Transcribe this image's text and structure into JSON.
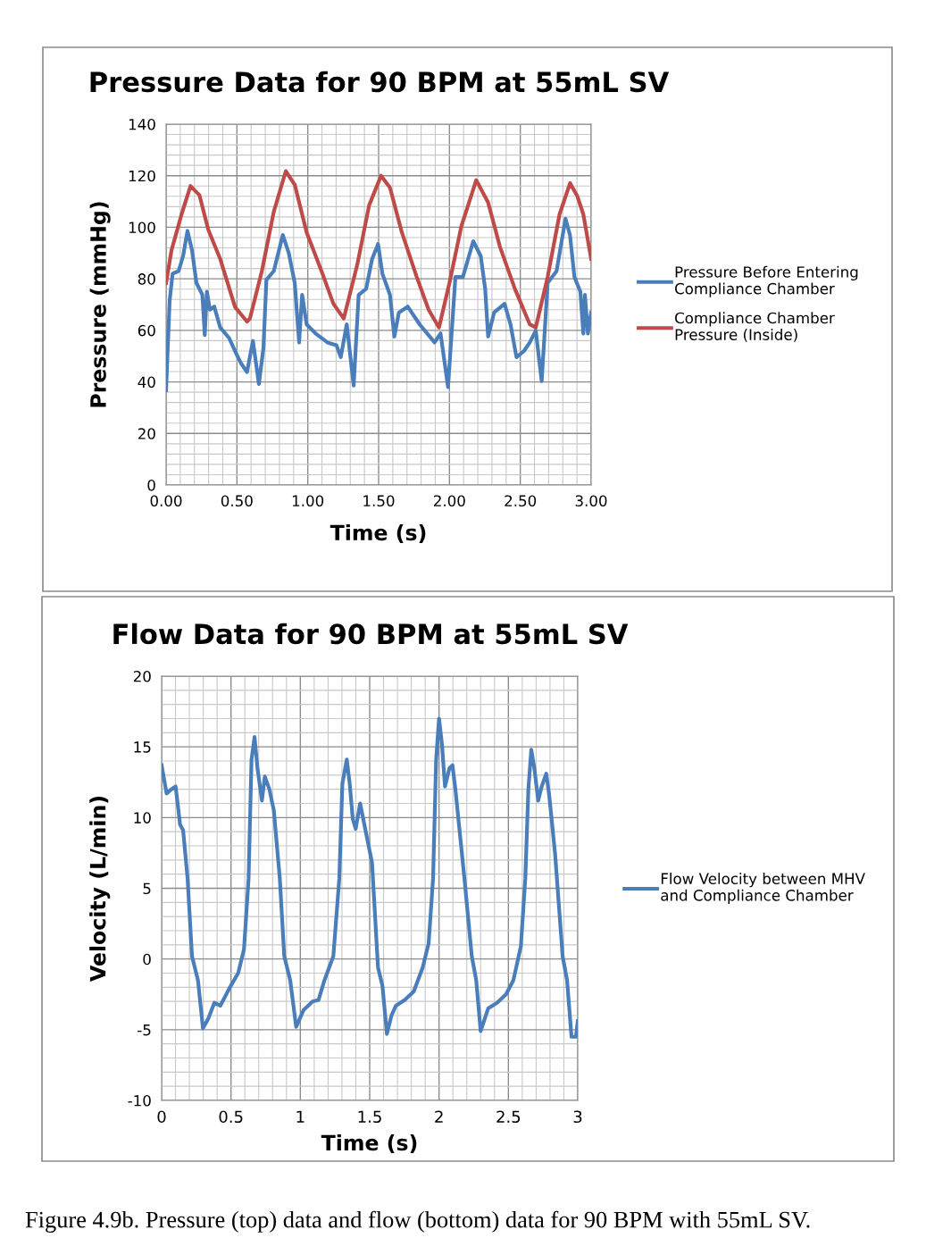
{
  "chart_data": [
    {
      "type": "line",
      "title": "Pressure Data for 90 BPM at 55mL SV",
      "xlabel": "Time (s)",
      "ylabel": "Pressure (mmHg)",
      "xlim": [
        0,
        3
      ],
      "ylim": [
        0,
        140
      ],
      "xticks": [
        {
          "value": 0,
          "label": "0.00"
        },
        {
          "value": 0.5,
          "label": "0.50"
        },
        {
          "value": 1,
          "label": "1.00"
        },
        {
          "value": 1.5,
          "label": "1.50"
        },
        {
          "value": 2,
          "label": "2.00"
        },
        {
          "value": 2.5,
          "label": "2.50"
        },
        {
          "value": 3,
          "label": "3.00"
        }
      ],
      "yticks": [
        0,
        20,
        40,
        60,
        80,
        100,
        120,
        140
      ],
      "grid": true,
      "legend": "right",
      "marker": "none",
      "line_style": "solid",
      "series": [
        {
          "name": "Pressure Before Entering\nCompliance Chamber",
          "color": "#4a7ebb",
          "x": [
            0,
            0.025,
            0.046,
            0.088,
            0.12,
            0.151,
            0.183,
            0.214,
            0.256,
            0.273,
            0.288,
            0.309,
            0.34,
            0.382,
            0.445,
            0.487,
            0.529,
            0.571,
            0.613,
            0.655,
            0.687,
            0.708,
            0.76,
            0.824,
            0.866,
            0.908,
            0.939,
            0.96,
            0.992,
            1.055,
            1.139,
            1.202,
            1.233,
            1.275,
            1.324,
            1.359,
            1.412,
            1.454,
            1.496,
            1.527,
            1.58,
            1.611,
            1.643,
            1.706,
            1.79,
            1.895,
            1.937,
            1.99,
            2.042,
            2.095,
            2.168,
            2.221,
            2.252,
            2.273,
            2.315,
            2.389,
            2.431,
            2.473,
            2.525,
            2.567,
            2.609,
            2.651,
            2.693,
            2.756,
            2.819,
            2.851,
            2.882,
            2.924,
            2.945,
            2.956,
            2.977,
            3.0
          ],
          "values": [
            36.8,
            71.5,
            82,
            83,
            88.8,
            98.6,
            91.1,
            78.4,
            73.8,
            58.2,
            75,
            68,
            69.2,
            61.1,
            57,
            51.9,
            47.2,
            43.8,
            55.9,
            39.2,
            53.1,
            79.6,
            83,
            97,
            90,
            78.4,
            55.3,
            73.8,
            62.3,
            58.8,
            55.3,
            54.2,
            49.6,
            62.3,
            38.6,
            73.8,
            76.1,
            87.7,
            93.5,
            81.9,
            73.8,
            57.6,
            66.9,
            69.2,
            62.3,
            55.3,
            58.8,
            38,
            80.7,
            80.7,
            94.6,
            88.8,
            76.1,
            57.6,
            66.9,
            70.3,
            62.3,
            49.6,
            51.9,
            55.3,
            59.9,
            40.3,
            78.4,
            83,
            103.3,
            96.9,
            80.7,
            75,
            58.8,
            73.8,
            58.8,
            66.9
          ]
        },
        {
          "name": "Compliance Chamber\nPressure (Inside)",
          "color": "#be4b48",
          "x": [
            0,
            0.038,
            0.109,
            0.172,
            0.235,
            0.298,
            0.382,
            0.487,
            0.571,
            0.592,
            0.676,
            0.76,
            0.845,
            0.908,
            0.992,
            1.097,
            1.181,
            1.254,
            1.349,
            1.433,
            1.517,
            1.58,
            1.664,
            1.769,
            1.853,
            1.926,
            2.0,
            2.084,
            2.189,
            2.273,
            2.357,
            2.462,
            2.567,
            2.609,
            2.693,
            2.777,
            2.851,
            2.903,
            2.945,
            3.0
          ],
          "values": [
            78.4,
            91,
            105,
            116,
            112.5,
            99,
            87.7,
            69,
            63.4,
            64.6,
            83,
            106,
            121.8,
            116.5,
            98,
            83,
            70.3,
            64.6,
            85.4,
            108.5,
            120,
            115.4,
            98,
            80.7,
            68,
            61.1,
            78.4,
            100.4,
            118.3,
            109.6,
            92.3,
            76.1,
            62.3,
            61.1,
            80.7,
            105,
            117.1,
            112,
            105,
            87.7
          ]
        }
      ]
    },
    {
      "type": "line",
      "title": "Flow Data for 90 BPM at 55mL SV",
      "xlabel": "Time (s)",
      "ylabel": "Velocity (L/min)",
      "xlim": [
        0,
        3
      ],
      "ylim": [
        -10,
        20
      ],
      "xticks": [
        0,
        0.5,
        1,
        1.5,
        2,
        2.5,
        3
      ],
      "yticks": [
        -10,
        -5,
        0,
        5,
        10,
        15,
        20
      ],
      "grid": true,
      "legend": "right",
      "marker": "none",
      "line_style": "solid",
      "annotations": [
        "Figure 4.9b. Pressure (top) data and flow (bottom) data for 90 BPM with 55mL SV."
      ],
      "series": [
        {
          "name": "Flow Velocity between MHV\nand Compliance Chamber",
          "color": "#4a7ebb",
          "x": [
            0,
            0.036,
            0.069,
            0.101,
            0.133,
            0.155,
            0.187,
            0.219,
            0.262,
            0.298,
            0.337,
            0.38,
            0.423,
            0.487,
            0.552,
            0.594,
            0.627,
            0.648,
            0.67,
            0.691,
            0.723,
            0.744,
            0.777,
            0.809,
            0.852,
            0.884,
            0.927,
            0.97,
            1.024,
            1.088,
            1.131,
            1.174,
            1.238,
            1.281,
            1.303,
            1.335,
            1.356,
            1.378,
            1.399,
            1.431,
            1.474,
            1.517,
            1.56,
            1.592,
            1.624,
            1.657,
            1.689,
            1.753,
            1.818,
            1.882,
            1.925,
            1.957,
            1.979,
            2.0,
            2.021,
            2.043,
            2.075,
            2.097,
            2.118,
            2.183,
            2.236,
            2.268,
            2.3,
            2.354,
            2.418,
            2.483,
            2.536,
            2.59,
            2.622,
            2.644,
            2.665,
            2.687,
            2.715,
            2.74,
            2.773,
            2.794,
            2.837,
            2.891,
            2.923,
            2.955,
            2.987,
            3.0
          ],
          "values": [
            13.7,
            11.7,
            12.0,
            12.2,
            9.5,
            9.1,
            5.7,
            0.2,
            -1.5,
            -4.9,
            -4.2,
            -3.1,
            -3.3,
            -2.1,
            -1.0,
            0.7,
            5.7,
            14.1,
            15.7,
            13.5,
            11.2,
            12.9,
            12.0,
            10.5,
            5.7,
            0.2,
            -1.5,
            -4.8,
            -3.6,
            -3.0,
            -2.9,
            -1.5,
            0.2,
            5.7,
            12.4,
            14.1,
            12.4,
            9.9,
            9.2,
            11.0,
            8.9,
            6.8,
            -0.6,
            -1.9,
            -5.3,
            -4.0,
            -3.3,
            -2.9,
            -2.3,
            -0.6,
            1.1,
            5.7,
            14.1,
            17.0,
            15.2,
            12.2,
            13.5,
            13.7,
            12.0,
            5.7,
            0.2,
            -1.5,
            -5.1,
            -3.5,
            -3.1,
            -2.5,
            -1.5,
            0.9,
            5.7,
            12.0,
            14.8,
            13.5,
            11.2,
            12.2,
            13.1,
            11.6,
            7.4,
            0.2,
            -1.5,
            -5.5,
            -5.5,
            -4.4
          ]
        }
      ]
    }
  ]
}
